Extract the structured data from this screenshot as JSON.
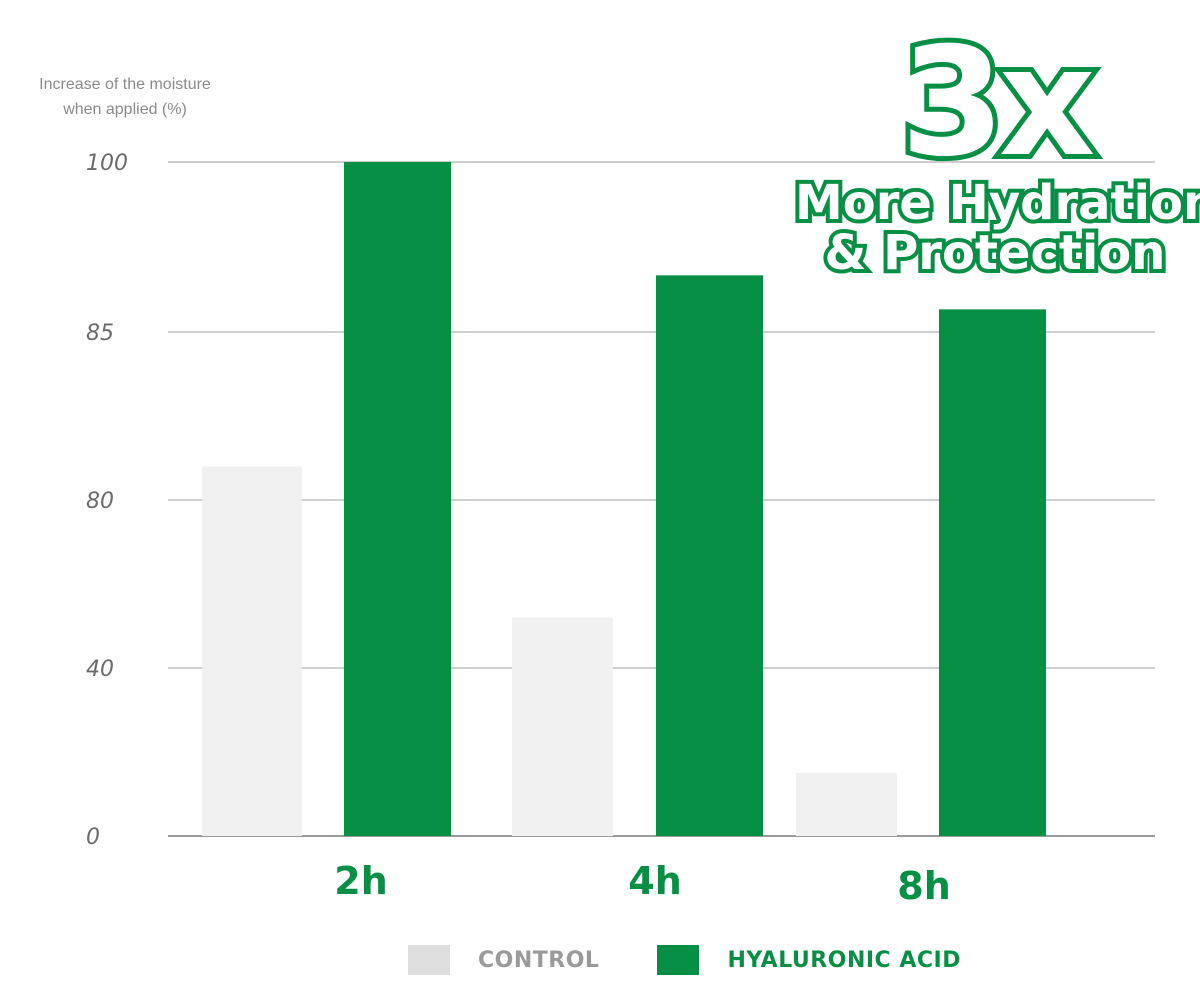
{
  "chart_data": {
    "type": "bar",
    "ylabel": "Increase of the moisture\nwhen applied (%)",
    "xlabel": "",
    "categories": [
      "2h",
      "4h",
      "8h"
    ],
    "y_tick_labels": [
      "0",
      "40",
      "80",
      "85",
      "100"
    ],
    "series": [
      {
        "name": "CONTROL",
        "values": [
          81,
          52,
          15
        ],
        "color": "#f1f1f1",
        "legend_color": "#dedede",
        "legend_text_color": "#9a9a9a"
      },
      {
        "name": "HYALURONIC ACID",
        "values": [
          100,
          90,
          87
        ],
        "color": "#078f45",
        "legend_color": "#078f45",
        "legend_text_color": "#078f45"
      }
    ],
    "grid": true,
    "legend_position": "bottom"
  },
  "badge": {
    "big": "3x",
    "line1": "More Hydration",
    "line2": "& Protection"
  }
}
